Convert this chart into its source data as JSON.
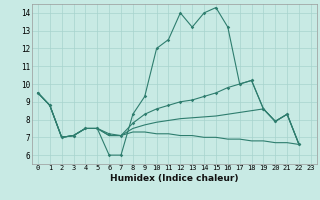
{
  "xlabel": "Humidex (Indice chaleur)",
  "xlim": [
    -0.5,
    23.5
  ],
  "ylim": [
    5.5,
    14.5
  ],
  "yticks": [
    6,
    7,
    8,
    9,
    10,
    11,
    12,
    13,
    14
  ],
  "xticks": [
    0,
    1,
    2,
    3,
    4,
    5,
    6,
    7,
    8,
    9,
    10,
    11,
    12,
    13,
    14,
    15,
    16,
    17,
    18,
    19,
    20,
    21,
    22,
    23
  ],
  "background_color": "#c8eae4",
  "grid_color": "#a8d4ce",
  "line_color": "#2e7d6e",
  "line1_x": [
    0,
    1,
    2,
    3,
    4,
    5,
    6,
    7,
    8,
    9,
    10,
    11,
    12,
    13,
    14,
    15,
    16,
    17,
    18,
    19,
    20,
    21,
    22
  ],
  "line1_y": [
    9.5,
    8.8,
    7.0,
    7.1,
    7.5,
    7.5,
    6.0,
    6.0,
    8.3,
    9.3,
    12.0,
    12.5,
    14.0,
    13.2,
    14.0,
    14.3,
    13.2,
    10.0,
    10.2,
    8.6,
    7.9,
    8.3,
    6.6
  ],
  "line2_x": [
    0,
    1,
    2,
    3,
    4,
    5,
    6,
    7,
    8,
    9,
    10,
    11,
    12,
    13,
    14,
    15,
    16,
    17,
    18,
    19,
    20,
    21,
    22
  ],
  "line2_y": [
    9.5,
    8.8,
    7.0,
    7.1,
    7.5,
    7.5,
    7.2,
    7.1,
    7.8,
    8.3,
    8.6,
    8.8,
    9.0,
    9.1,
    9.3,
    9.5,
    9.8,
    10.0,
    10.2,
    8.6,
    7.9,
    8.3,
    6.6
  ],
  "line3_x": [
    0,
    1,
    2,
    3,
    4,
    5,
    6,
    7,
    8,
    9,
    10,
    11,
    12,
    13,
    14,
    15,
    16,
    17,
    18,
    19,
    20,
    21,
    22
  ],
  "line3_y": [
    9.5,
    8.8,
    7.0,
    7.1,
    7.5,
    7.5,
    7.1,
    7.1,
    7.5,
    7.7,
    7.85,
    7.95,
    8.05,
    8.1,
    8.15,
    8.2,
    8.3,
    8.4,
    8.5,
    8.6,
    7.9,
    8.3,
    6.6
  ],
  "line4_x": [
    0,
    1,
    2,
    3,
    4,
    5,
    6,
    7,
    8,
    9,
    10,
    11,
    12,
    13,
    14,
    15,
    16,
    17,
    18,
    19,
    20,
    21,
    22
  ],
  "line4_y": [
    9.5,
    8.8,
    7.0,
    7.1,
    7.5,
    7.5,
    7.1,
    7.1,
    7.3,
    7.3,
    7.2,
    7.2,
    7.1,
    7.1,
    7.0,
    7.0,
    6.9,
    6.9,
    6.8,
    6.8,
    6.7,
    6.7,
    6.6
  ]
}
